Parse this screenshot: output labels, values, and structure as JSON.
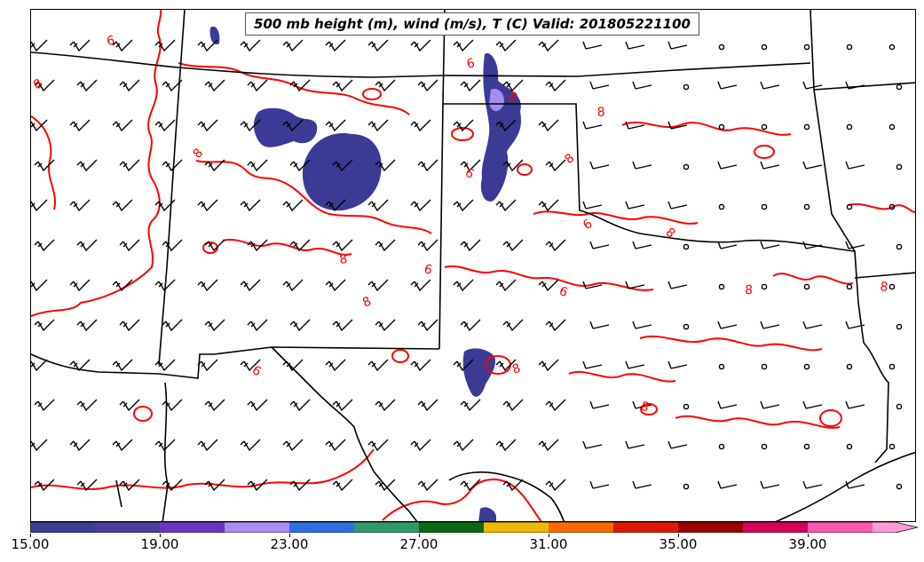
{
  "title": "500 mb height (m), wind (m/s), T (C) Valid: 201805221100",
  "colors": {
    "contour": "#ff0000",
    "border": "#000000",
    "barb": "#000000",
    "shade_dark": "#3b3b95",
    "shade_light": "#a48cf0"
  },
  "colorbar": {
    "ticks": [
      "15.00",
      "19.00",
      "23.00",
      "27.00",
      "31.00",
      "35.00",
      "39.00"
    ],
    "colors": [
      "#3a3f94",
      "#4d3e9e",
      "#6a35c4",
      "#a78ef2",
      "#2f6fe0",
      "#2f9a6a",
      "#0a6a14",
      "#f0b800",
      "#ff6a00",
      "#e01a00",
      "#9a0000",
      "#d4005a",
      "#ff5ab4",
      "#ff9ad4"
    ]
  },
  "map": {
    "contour_labels": [
      "8",
      "8",
      "6",
      "8",
      "6",
      "8",
      "8",
      "6",
      "8",
      "8",
      "6",
      "8",
      "8",
      "6",
      "6",
      "8",
      "8",
      "8",
      "6"
    ],
    "station_symbol": "calm-circle-icon",
    "barb_symbol": "wind-barb-icon"
  }
}
